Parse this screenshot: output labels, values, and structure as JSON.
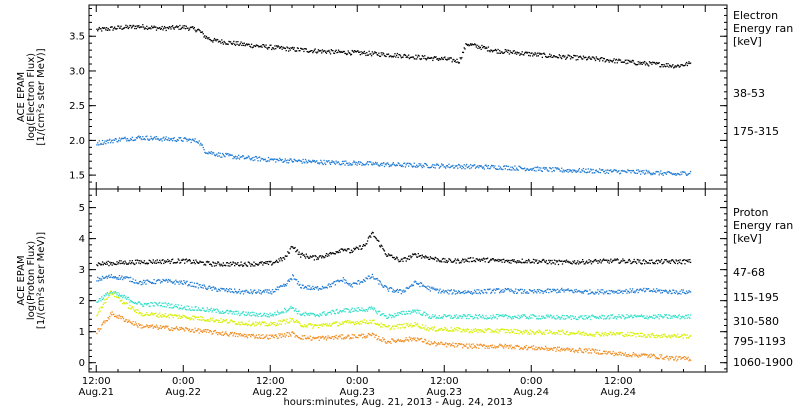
{
  "chart_data": [
    {
      "type": "scatter",
      "panel": "electron",
      "ylabel_lines": [
        "ACE EPAM",
        "log(Electron Flux)",
        "[1/(cm²s ster MeV)]"
      ],
      "ylim": [
        1.3,
        3.95
      ],
      "yticks": [
        1.5,
        2.0,
        2.5,
        3.0,
        3.5
      ],
      "ytick_labels": [
        "1.5",
        "2.0",
        "2.5",
        "3.0",
        "3.5"
      ],
      "legend": {
        "title_lines": [
          "Electron",
          "Energy ran",
          "[keV]"
        ],
        "placement": "right"
      },
      "series": [
        {
          "name": "38-53",
          "color": "#000000",
          "points": [
            [
              0,
              3.6
            ],
            [
              3,
              3.63
            ],
            [
              6,
              3.65
            ],
            [
              9,
              3.62
            ],
            [
              12,
              3.64
            ],
            [
              14,
              3.6
            ],
            [
              15,
              3.5
            ],
            [
              16,
              3.45
            ],
            [
              18,
              3.42
            ],
            [
              21,
              3.38
            ],
            [
              24,
              3.35
            ],
            [
              27,
              3.32
            ],
            [
              30,
              3.3
            ],
            [
              33,
              3.28
            ],
            [
              36,
              3.27
            ],
            [
              39,
              3.25
            ],
            [
              42,
              3.23
            ],
            [
              45,
              3.2
            ],
            [
              48,
              3.18
            ],
            [
              50,
              3.15
            ],
            [
              51,
              3.4
            ],
            [
              53,
              3.35
            ],
            [
              55,
              3.3
            ],
            [
              57,
              3.28
            ],
            [
              60,
              3.25
            ],
            [
              63,
              3.22
            ],
            [
              66,
              3.2
            ],
            [
              69,
              3.18
            ],
            [
              72,
              3.15
            ],
            [
              75,
              3.12
            ],
            [
              78,
              3.1
            ],
            [
              80,
              3.08
            ],
            [
              82,
              3.12
            ]
          ]
        },
        {
          "name": "175-315",
          "color": "#1f7ad2",
          "points": [
            [
              0,
              1.97
            ],
            [
              3,
              2.02
            ],
            [
              6,
              2.05
            ],
            [
              9,
              2.03
            ],
            [
              12,
              2.02
            ],
            [
              14,
              2.0
            ],
            [
              15,
              1.85
            ],
            [
              17,
              1.8
            ],
            [
              20,
              1.76
            ],
            [
              24,
              1.73
            ],
            [
              28,
              1.71
            ],
            [
              32,
              1.69
            ],
            [
              36,
              1.68
            ],
            [
              40,
              1.66
            ],
            [
              44,
              1.65
            ],
            [
              48,
              1.64
            ],
            [
              52,
              1.63
            ],
            [
              56,
              1.62
            ],
            [
              60,
              1.6
            ],
            [
              64,
              1.58
            ],
            [
              68,
              1.57
            ],
            [
              72,
              1.56
            ],
            [
              76,
              1.55
            ],
            [
              80,
              1.52
            ],
            [
              82,
              1.55
            ]
          ]
        }
      ]
    },
    {
      "type": "scatter",
      "panel": "proton",
      "xlabel": "hours:minutes, Aug. 21, 2013 - Aug. 24, 2013",
      "ylabel_lines": [
        "ACE EPAM",
        "log(Proton Flux)",
        "[1/(cm²s ster MeV)]"
      ],
      "ylim": [
        -0.3,
        5.6
      ],
      "yticks": [
        0,
        1,
        2,
        3,
        4,
        5
      ],
      "ytick_labels": [
        "0",
        "1",
        "2",
        "3",
        "4",
        "5"
      ],
      "xlim": [
        -1,
        87
      ],
      "xticks": [
        0,
        12,
        24,
        36,
        48,
        60,
        72,
        84
      ],
      "xtick_labels": [
        [
          "12:00",
          "Aug.21"
        ],
        [
          "0:00",
          "Aug.22"
        ],
        [
          "12:00",
          "Aug.22"
        ],
        [
          "0:00",
          "Aug.23"
        ],
        [
          "12:00",
          "Aug.23"
        ],
        [
          "0:00",
          "Aug.24"
        ],
        [
          "12:00",
          "Aug.24"
        ],
        [
          "",
          ""
        ]
      ],
      "legend": {
        "title_lines": [
          "Proton",
          "Energy ran",
          "[keV]"
        ],
        "placement": "right"
      },
      "series": [
        {
          "name": "47-68",
          "color": "#000000",
          "points": [
            [
              0,
              3.2
            ],
            [
              4,
              3.25
            ],
            [
              8,
              3.28
            ],
            [
              12,
              3.3
            ],
            [
              14,
              3.25
            ],
            [
              16,
              3.2
            ],
            [
              20,
              3.2
            ],
            [
              24,
              3.22
            ],
            [
              26,
              3.4
            ],
            [
              27,
              3.8
            ],
            [
              28,
              3.5
            ],
            [
              30,
              3.4
            ],
            [
              32,
              3.5
            ],
            [
              34,
              3.7
            ],
            [
              35,
              3.6
            ],
            [
              37,
              3.8
            ],
            [
              38,
              4.2
            ],
            [
              40,
              3.5
            ],
            [
              42,
              3.3
            ],
            [
              44,
              3.5
            ],
            [
              46,
              3.4
            ],
            [
              48,
              3.3
            ],
            [
              50,
              3.3
            ],
            [
              52,
              3.35
            ],
            [
              56,
              3.3
            ],
            [
              60,
              3.3
            ],
            [
              64,
              3.25
            ],
            [
              68,
              3.28
            ],
            [
              72,
              3.3
            ],
            [
              76,
              3.27
            ],
            [
              80,
              3.28
            ],
            [
              82,
              3.28
            ]
          ]
        },
        {
          "name": "115-195",
          "color": "#1f7ad2",
          "points": [
            [
              0,
              2.7
            ],
            [
              2,
              2.8
            ],
            [
              4,
              2.75
            ],
            [
              6,
              2.6
            ],
            [
              9,
              2.65
            ],
            [
              12,
              2.6
            ],
            [
              14,
              2.5
            ],
            [
              16,
              2.4
            ],
            [
              20,
              2.3
            ],
            [
              24,
              2.3
            ],
            [
              26,
              2.5
            ],
            [
              27,
              2.8
            ],
            [
              28,
              2.5
            ],
            [
              30,
              2.4
            ],
            [
              32,
              2.5
            ],
            [
              34,
              2.7
            ],
            [
              35,
              2.5
            ],
            [
              37,
              2.7
            ],
            [
              38,
              2.8
            ],
            [
              40,
              2.4
            ],
            [
              42,
              2.3
            ],
            [
              44,
              2.6
            ],
            [
              46,
              2.4
            ],
            [
              48,
              2.3
            ],
            [
              52,
              2.3
            ],
            [
              56,
              2.35
            ],
            [
              60,
              2.3
            ],
            [
              64,
              2.35
            ],
            [
              68,
              2.3
            ],
            [
              72,
              2.32
            ],
            [
              76,
              2.35
            ],
            [
              80,
              2.3
            ],
            [
              82,
              2.3
            ]
          ]
        },
        {
          "name": "310-580",
          "color": "#2fe0c8",
          "points": [
            [
              0,
              2.0
            ],
            [
              2,
              2.3
            ],
            [
              4,
              2.1
            ],
            [
              6,
              1.9
            ],
            [
              9,
              1.9
            ],
            [
              12,
              1.8
            ],
            [
              14,
              1.75
            ],
            [
              16,
              1.7
            ],
            [
              20,
              1.6
            ],
            [
              24,
              1.55
            ],
            [
              27,
              1.8
            ],
            [
              28,
              1.6
            ],
            [
              30,
              1.55
            ],
            [
              34,
              1.7
            ],
            [
              38,
              1.75
            ],
            [
              40,
              1.5
            ],
            [
              44,
              1.7
            ],
            [
              46,
              1.5
            ],
            [
              48,
              1.5
            ],
            [
              52,
              1.5
            ],
            [
              56,
              1.5
            ],
            [
              60,
              1.5
            ],
            [
              64,
              1.48
            ],
            [
              68,
              1.48
            ],
            [
              72,
              1.5
            ],
            [
              76,
              1.5
            ],
            [
              80,
              1.5
            ],
            [
              82,
              1.5
            ]
          ]
        },
        {
          "name": "795-1193",
          "color": "#d6f000",
          "points": [
            [
              0,
              1.6
            ],
            [
              2,
              2.3
            ],
            [
              4,
              1.9
            ],
            [
              6,
              1.6
            ],
            [
              9,
              1.55
            ],
            [
              12,
              1.5
            ],
            [
              14,
              1.45
            ],
            [
              16,
              1.4
            ],
            [
              20,
              1.3
            ],
            [
              24,
              1.25
            ],
            [
              27,
              1.4
            ],
            [
              28,
              1.25
            ],
            [
              30,
              1.2
            ],
            [
              34,
              1.3
            ],
            [
              38,
              1.35
            ],
            [
              40,
              1.15
            ],
            [
              44,
              1.25
            ],
            [
              46,
              1.1
            ],
            [
              48,
              1.1
            ],
            [
              52,
              1.05
            ],
            [
              56,
              1.05
            ],
            [
              60,
              1.0
            ],
            [
              64,
              1.0
            ],
            [
              68,
              0.95
            ],
            [
              72,
              0.95
            ],
            [
              76,
              0.9
            ],
            [
              80,
              0.88
            ],
            [
              82,
              0.88
            ]
          ]
        },
        {
          "name": "1060-1900",
          "color": "#f08c1e",
          "points": [
            [
              0,
              1.0
            ],
            [
              2,
              1.6
            ],
            [
              4,
              1.4
            ],
            [
              6,
              1.2
            ],
            [
              9,
              1.15
            ],
            [
              12,
              1.1
            ],
            [
              14,
              1.05
            ],
            [
              16,
              1.0
            ],
            [
              20,
              0.9
            ],
            [
              24,
              0.85
            ],
            [
              27,
              0.95
            ],
            [
              28,
              0.85
            ],
            [
              30,
              0.8
            ],
            [
              34,
              0.85
            ],
            [
              38,
              0.9
            ],
            [
              40,
              0.7
            ],
            [
              44,
              0.8
            ],
            [
              46,
              0.65
            ],
            [
              48,
              0.6
            ],
            [
              52,
              0.55
            ],
            [
              56,
              0.55
            ],
            [
              60,
              0.5
            ],
            [
              64,
              0.45
            ],
            [
              68,
              0.4
            ],
            [
              72,
              0.3
            ],
            [
              76,
              0.25
            ],
            [
              80,
              0.15
            ],
            [
              82,
              0.15
            ]
          ]
        }
      ]
    }
  ]
}
